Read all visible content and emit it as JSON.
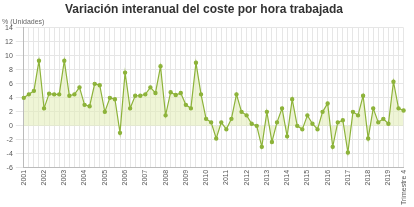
{
  "chart_data": {
    "type": "line",
    "title": "Variación interanual del coste por hora trabajada",
    "y_label": "% (Unidades)",
    "categories": [
      "2001",
      null,
      null,
      null,
      "2002",
      null,
      null,
      null,
      "2003",
      null,
      null,
      null,
      "2004",
      null,
      null,
      null,
      "2005",
      null,
      null,
      null,
      "2006",
      null,
      null,
      null,
      "2007",
      null,
      null,
      null,
      "2008",
      null,
      null,
      null,
      "2009",
      null,
      null,
      null,
      "2010",
      null,
      null,
      null,
      "2011",
      null,
      null,
      null,
      "2012",
      null,
      null,
      null,
      "2013",
      null,
      null,
      null,
      "2014",
      null,
      null,
      null,
      "2015",
      null,
      null,
      null,
      "2016",
      null,
      null,
      null,
      "2017",
      null,
      null,
      null,
      "2018",
      null,
      null,
      null,
      "2019",
      null,
      null,
      "Trimestre 4"
    ],
    "values": [
      4,
      4.5,
      5,
      9.3,
      2.5,
      4.6,
      4.5,
      4.5,
      9.3,
      4.3,
      4.5,
      5.5,
      3,
      2.8,
      6,
      5.8,
      2,
      4,
      3.8,
      -1,
      7.6,
      2.5,
      4.3,
      4.3,
      4.5,
      5.5,
      4.7,
      8.5,
      1.5,
      4.8,
      4.4,
      4.7,
      3,
      2.5,
      9,
      4.5,
      1,
      0.5,
      -1.8,
      0.5,
      -0.5,
      1,
      4.5,
      2,
      1.5,
      0.3,
      0,
      -3,
      2,
      -2.3,
      0.5,
      2.5,
      -1.5,
      3.8,
      0,
      -0.5,
      1.5,
      0.3,
      -0.5,
      2,
      3.2,
      -3,
      0.5,
      0.8,
      -3.8,
      2,
      1.5,
      4.3,
      -1.8,
      2.5,
      0.5,
      1,
      0.3,
      6.3,
      2.5,
      2.2
    ],
    "color": "#8db33a",
    "marker": "circle",
    "ylim": [
      -6,
      14
    ],
    "yticks": [
      -6,
      -4,
      -2,
      0,
      2,
      4,
      6,
      8,
      10,
      12,
      14
    ],
    "grid": true
  }
}
